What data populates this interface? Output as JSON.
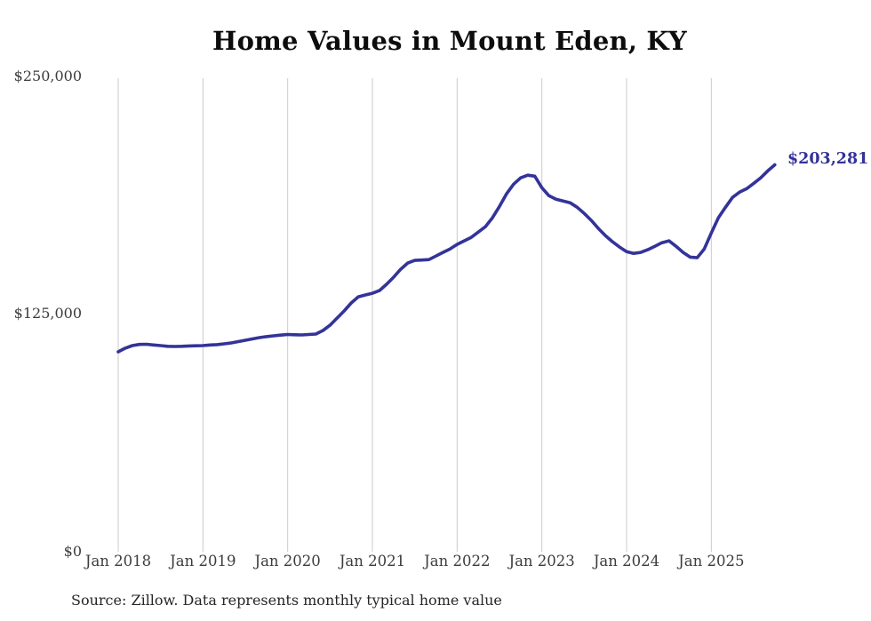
{
  "title": "Home Values in Mount Eden, KY",
  "end_label": "$203,281",
  "source_note": "Source: Zillow. Data represents monthly typical home value",
  "colors": {
    "line": "#333399",
    "end_label": "#333399",
    "grid": "#cbcbcb",
    "tick_text": "#3c3c3c",
    "title_text": "#0d0d0d"
  },
  "chart_data": {
    "type": "line",
    "title": "Home Values in Mount Eden, KY",
    "xlabel": "",
    "ylabel": "",
    "ylim": [
      0,
      250000
    ],
    "grid": "vertical-only",
    "legend": "none",
    "x_start_month": "Jan 2018",
    "x_end_month": "Oct 2025",
    "x_tick_labels": [
      "Jan 2018",
      "Jan 2019",
      "Jan 2020",
      "Jan 2021",
      "Jan 2022",
      "Jan 2023",
      "Jan 2024",
      "Jan 2025"
    ],
    "x_tick_month_indices": [
      0,
      12,
      24,
      36,
      48,
      60,
      72,
      84
    ],
    "y_ticks": [
      {
        "label": "$0",
        "value": 0
      },
      {
        "label": "$125,000",
        "value": 125000
      },
      {
        "label": "$250,000",
        "value": 250000
      }
    ],
    "end_value": 203281,
    "series": [
      {
        "name": "Monthly typical home value",
        "values": [
          104900,
          106800,
          108200,
          108800,
          108900,
          108500,
          108200,
          107800,
          107700,
          107800,
          108000,
          108100,
          108200,
          108500,
          108700,
          109100,
          109600,
          110300,
          111000,
          111700,
          112400,
          112900,
          113300,
          113700,
          114000,
          113900,
          113800,
          114000,
          114250,
          116100,
          118900,
          122650,
          126400,
          130600,
          133850,
          134800,
          135700,
          137100,
          140400,
          144100,
          148300,
          151600,
          153000,
          153200,
          153400,
          155300,
          157200,
          159000,
          161400,
          163250,
          165100,
          167900,
          170700,
          175400,
          181400,
          188000,
          193100,
          196400,
          197800,
          197300,
          191200,
          187000,
          185200,
          184200,
          183300,
          180950,
          177700,
          174000,
          169800,
          166000,
          162800,
          160000,
          157600,
          156700,
          157200,
          158600,
          160400,
          162300,
          163250,
          160400,
          157200,
          154700,
          154400,
          159000,
          167400,
          175400,
          180900,
          186100,
          188900,
          190700,
          193500,
          196400,
          200100,
          203281
        ]
      }
    ]
  }
}
